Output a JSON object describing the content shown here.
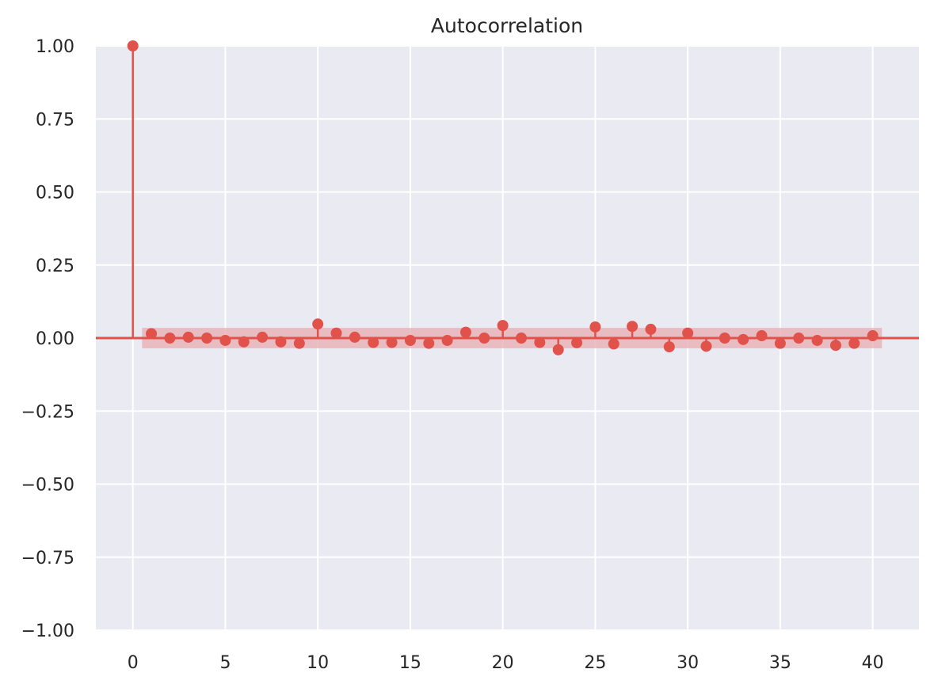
{
  "chart_data": {
    "type": "stem",
    "title": "Autocorrelation",
    "xlabel": "",
    "ylabel": "",
    "xlim": [
      -2,
      42.5
    ],
    "ylim": [
      -1.0,
      1.0
    ],
    "xticks": [
      0,
      5,
      10,
      15,
      20,
      25,
      30,
      35,
      40
    ],
    "xtick_labels": [
      "0",
      "5",
      "10",
      "15",
      "20",
      "25",
      "30",
      "35",
      "40"
    ],
    "yticks": [
      1.0,
      0.75,
      0.5,
      0.25,
      0.0,
      -0.25,
      -0.5,
      -0.75,
      -1.0
    ],
    "ytick_labels": [
      "1.00",
      "0.75",
      "0.50",
      "0.25",
      "0.00",
      "−0.25",
      "−0.50",
      "−0.75",
      "−1.00"
    ],
    "grid": true,
    "colors": {
      "series": "#e0524a",
      "band": "#e8b0b4",
      "background": "#eaeaf2",
      "grid": "#ffffff"
    },
    "confidence_band": {
      "x_start": 0.5,
      "x_end": 40.5,
      "upper": 0.035,
      "lower": -0.035
    },
    "lags": [
      0,
      1,
      2,
      3,
      4,
      5,
      6,
      7,
      8,
      9,
      10,
      11,
      12,
      13,
      14,
      15,
      16,
      17,
      18,
      19,
      20,
      21,
      22,
      23,
      24,
      25,
      26,
      27,
      28,
      29,
      30,
      31,
      32,
      33,
      34,
      35,
      36,
      37,
      38,
      39,
      40
    ],
    "values": [
      1.0,
      0.015,
      0.0,
      0.003,
      0.0,
      -0.008,
      -0.013,
      0.003,
      -0.013,
      -0.018,
      0.048,
      0.017,
      0.003,
      -0.015,
      -0.015,
      -0.008,
      -0.018,
      -0.008,
      0.02,
      0.0,
      0.043,
      0.0,
      -0.015,
      -0.04,
      -0.016,
      0.038,
      -0.02,
      0.04,
      0.03,
      -0.03,
      0.017,
      -0.028,
      0.0,
      -0.005,
      0.008,
      -0.018,
      0.0,
      -0.008,
      -0.025,
      -0.018,
      0.008
    ]
  }
}
